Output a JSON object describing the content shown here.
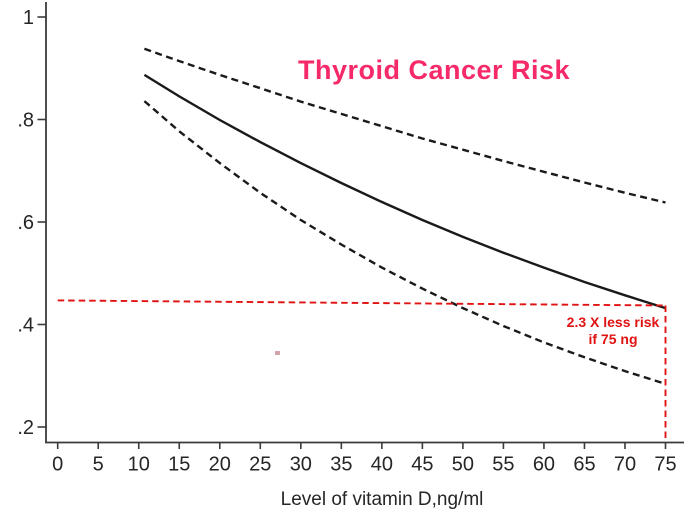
{
  "chart_data": {
    "type": "line",
    "title": "Thyroid Cancer Risk",
    "title_color": "#f62a68",
    "xlabel": "Level of vitamin D,ng/ml",
    "ylabel": "",
    "xlim": [
      0,
      75
    ],
    "ylim": [
      0.2,
      1
    ],
    "grid": false,
    "legend_position": "none",
    "axis_color": "#3a3a3a",
    "tick_label_color": "#262626",
    "x_ticks": [
      0,
      5,
      10,
      15,
      20,
      25,
      30,
      35,
      40,
      45,
      50,
      55,
      60,
      65,
      70,
      75
    ],
    "y_ticks": [
      {
        "value": 1.0,
        "label": "1"
      },
      {
        "value": 0.8,
        "label": ".8"
      },
      {
        "value": 0.6,
        "label": ".6"
      },
      {
        "value": 0.4,
        "label": ".4"
      },
      {
        "value": 0.2,
        "label": ".2"
      }
    ],
    "series": [
      {
        "name": "risk-estimate",
        "style": "solid",
        "color": "#1a1a1a",
        "x": [
          10.7,
          15,
          20,
          25,
          30,
          35,
          40,
          45,
          50,
          55,
          60,
          65,
          70,
          75
        ],
        "y": [
          0.887,
          0.845,
          0.799,
          0.756,
          0.715,
          0.676,
          0.639,
          0.604,
          0.571,
          0.54,
          0.511,
          0.483,
          0.457,
          0.432
        ]
      },
      {
        "name": "upper-confidence-band",
        "style": "dashed",
        "color": "#1a1a1a",
        "x": [
          10.7,
          15,
          20,
          25,
          30,
          35,
          40,
          45,
          50,
          55,
          60,
          65,
          70,
          75
        ],
        "y": [
          0.938,
          0.914,
          0.887,
          0.861,
          0.835,
          0.811,
          0.787,
          0.763,
          0.741,
          0.719,
          0.698,
          0.677,
          0.657,
          0.638
        ]
      },
      {
        "name": "lower-confidence-band",
        "style": "dashed",
        "color": "#1a1a1a",
        "x": [
          10.7,
          15,
          20,
          25,
          30,
          35,
          40,
          45,
          50,
          55,
          60,
          65,
          70,
          75
        ],
        "y": [
          0.836,
          0.777,
          0.715,
          0.657,
          0.604,
          0.556,
          0.511,
          0.47,
          0.432,
          0.397,
          0.365,
          0.336,
          0.309,
          0.284
        ]
      },
      {
        "name": "reference-level-line",
        "style": "dashed-red",
        "color": "#e01212",
        "x": [
          0,
          75
        ],
        "y": [
          0.447,
          0.437
        ]
      },
      {
        "name": "drop-line-75ng",
        "style": "dashed-red",
        "color": "#e01212",
        "x": [
          75,
          75
        ],
        "y": [
          0.437,
          0.172
        ]
      }
    ],
    "annotations": [
      {
        "lines": [
          "2.3 X less risk",
          "if 75 ng"
        ],
        "color": "#e01212",
        "x": 68.5,
        "y": 0.41
      }
    ]
  }
}
